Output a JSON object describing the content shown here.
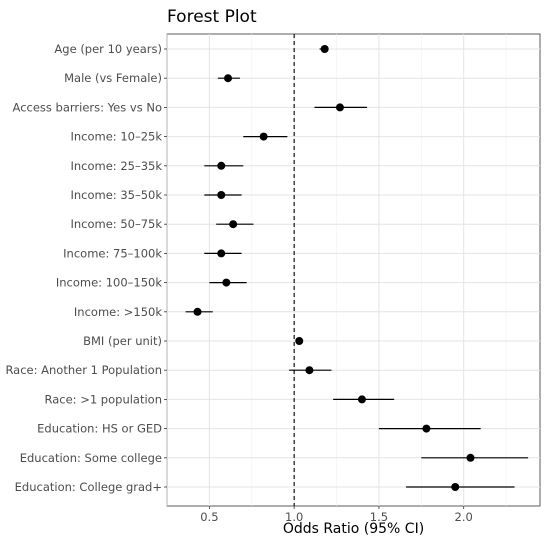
{
  "chart_data": {
    "type": "scatter",
    "subtype": "forest-plot",
    "title": "Forest Plot",
    "xlabel": "Odds Ratio (95% CI)",
    "ylabel": "",
    "xlim": [
      0.25,
      2.45
    ],
    "xticks": [
      0.5,
      1.0,
      1.5,
      2.0
    ],
    "xtick_labels": [
      "0.5",
      "1.0",
      "1.5",
      "2.0"
    ],
    "reference_line": 1.0,
    "grid": true,
    "legend": "none",
    "point_color": "#000000",
    "rows": [
      {
        "label": "Age (per 10 years)",
        "or": 1.18,
        "lo": 1.15,
        "hi": 1.2
      },
      {
        "label": "Male (vs Female)",
        "or": 0.61,
        "lo": 0.55,
        "hi": 0.68
      },
      {
        "label": "Access barriers: Yes vs No",
        "or": 1.27,
        "lo": 1.12,
        "hi": 1.43
      },
      {
        "label": "Income: 10–25k",
        "or": 0.82,
        "lo": 0.7,
        "hi": 0.96
      },
      {
        "label": "Income: 25–35k",
        "or": 0.57,
        "lo": 0.47,
        "hi": 0.7
      },
      {
        "label": "Income: 35–50k",
        "or": 0.57,
        "lo": 0.47,
        "hi": 0.69
      },
      {
        "label": "Income: 50–75k",
        "or": 0.64,
        "lo": 0.54,
        "hi": 0.76
      },
      {
        "label": "Income: 75–100k",
        "or": 0.57,
        "lo": 0.47,
        "hi": 0.69
      },
      {
        "label": "Income: 100–150k",
        "or": 0.6,
        "lo": 0.5,
        "hi": 0.72
      },
      {
        "label": "Income: >150k",
        "or": 0.43,
        "lo": 0.36,
        "hi": 0.52
      },
      {
        "label": "BMI (per unit)",
        "or": 1.03,
        "lo": 1.02,
        "hi": 1.04
      },
      {
        "label": "Race: Another 1 Population",
        "or": 1.09,
        "lo": 0.97,
        "hi": 1.22
      },
      {
        "label": "Race: >1 population",
        "or": 1.4,
        "lo": 1.23,
        "hi": 1.59
      },
      {
        "label": "Education: HS or GED",
        "or": 1.78,
        "lo": 1.5,
        "hi": 2.1
      },
      {
        "label": "Education: Some college",
        "or": 2.04,
        "lo": 1.75,
        "hi": 2.38
      },
      {
        "label": "Education: College grad+",
        "or": 1.95,
        "lo": 1.66,
        "hi": 2.3
      }
    ]
  }
}
